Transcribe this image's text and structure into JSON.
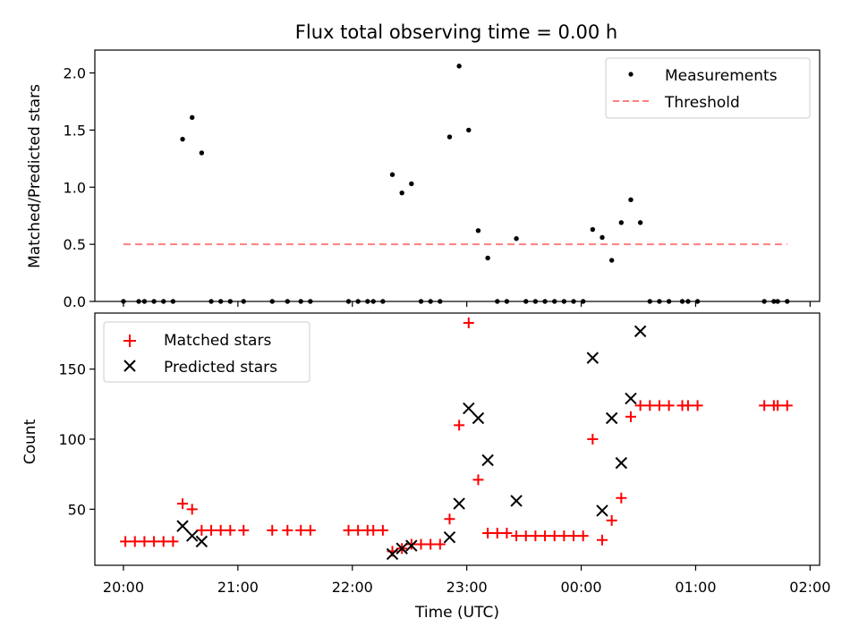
{
  "title": "Flux total observing time = 0.00 h",
  "chart_data": [
    {
      "type": "scatter",
      "ylabel": "Matched/Predicted stars",
      "xlabel": "",
      "xlim": [
        "19:45",
        "02:05"
      ],
      "ylim": [
        0,
        2.2
      ],
      "yticks": [
        "0.0",
        "0.5",
        "1.0",
        "1.5",
        "2.0"
      ],
      "legend": "top-right",
      "grid": false,
      "series": [
        {
          "name": "Measurements",
          "marker": "dot",
          "color": "#000000",
          "points": [
            [
              "20:00",
              0
            ],
            [
              "20:08",
              0
            ],
            [
              "20:11",
              0
            ],
            [
              "20:16",
              0
            ],
            [
              "20:21",
              0
            ],
            [
              "20:26",
              0
            ],
            [
              "20:31",
              1.42
            ],
            [
              "20:36",
              1.61
            ],
            [
              "20:41",
              1.3
            ],
            [
              "20:46",
              0
            ],
            [
              "20:51",
              0
            ],
            [
              "20:56",
              0
            ],
            [
              "21:03",
              0
            ],
            [
              "21:18",
              0
            ],
            [
              "21:26",
              0
            ],
            [
              "21:33",
              0
            ],
            [
              "21:38",
              0
            ],
            [
              "21:58",
              0
            ],
            [
              "22:03",
              0
            ],
            [
              "22:08",
              0
            ],
            [
              "22:11",
              0
            ],
            [
              "22:16",
              0
            ],
            [
              "22:21",
              1.11
            ],
            [
              "22:26",
              0.95
            ],
            [
              "22:31",
              1.03
            ],
            [
              "22:36",
              0
            ],
            [
              "22:41",
              0
            ],
            [
              "22:46",
              0
            ],
            [
              "22:51",
              1.44
            ],
            [
              "22:56",
              2.06
            ],
            [
              "23:01",
              1.5
            ],
            [
              "23:06",
              0.62
            ],
            [
              "23:11",
              0.38
            ],
            [
              "23:16",
              0
            ],
            [
              "23:21",
              0
            ],
            [
              "23:26",
              0.55
            ],
            [
              "23:31",
              0
            ],
            [
              "23:36",
              0
            ],
            [
              "23:41",
              0
            ],
            [
              "23:46",
              0
            ],
            [
              "23:51",
              0
            ],
            [
              "23:56",
              0
            ],
            [
              "00:01",
              0
            ],
            [
              "00:06",
              0.63
            ],
            [
              "00:11",
              0.56
            ],
            [
              "00:16",
              0.36
            ],
            [
              "00:21",
              0.69
            ],
            [
              "00:26",
              0.89
            ],
            [
              "00:31",
              0.69
            ],
            [
              "00:36",
              0
            ],
            [
              "00:41",
              0
            ],
            [
              "00:46",
              0
            ],
            [
              "00:53",
              0
            ],
            [
              "00:56",
              0
            ],
            [
              "01:01",
              0
            ],
            [
              "01:36",
              0
            ],
            [
              "01:41",
              0
            ],
            [
              "01:43",
              0
            ],
            [
              "01:48",
              0
            ]
          ]
        },
        {
          "name": "Threshold",
          "type": "line",
          "style": "dashed",
          "color": "#ff7f7f",
          "points": [
            [
              "20:00",
              0.5
            ],
            [
              "01:48",
              0.5
            ]
          ]
        }
      ]
    },
    {
      "type": "scatter",
      "ylabel": "Count",
      "xlabel": "Time (UTC)",
      "xlim": [
        "19:45",
        "02:05"
      ],
      "ylim": [
        10,
        190
      ],
      "yticks": [
        "50",
        "100",
        "150"
      ],
      "xticks": [
        "20:00",
        "21:00",
        "22:00",
        "23:00",
        "00:00",
        "01:00",
        "02:00"
      ],
      "legend": "top-left",
      "grid": false,
      "series": [
        {
          "name": "Matched stars",
          "marker": "plus",
          "color": "#ff0000",
          "points": [
            [
              "20:01",
              27
            ],
            [
              "20:06",
              27
            ],
            [
              "20:11",
              27
            ],
            [
              "20:16",
              27
            ],
            [
              "20:21",
              27
            ],
            [
              "20:26",
              27
            ],
            [
              "20:31",
              54
            ],
            [
              "20:36",
              50
            ],
            [
              "20:41",
              35
            ],
            [
              "20:46",
              35
            ],
            [
              "20:51",
              35
            ],
            [
              "20:56",
              35
            ],
            [
              "21:03",
              35
            ],
            [
              "21:18",
              35
            ],
            [
              "21:26",
              35
            ],
            [
              "21:33",
              35
            ],
            [
              "21:38",
              35
            ],
            [
              "21:58",
              35
            ],
            [
              "22:03",
              35
            ],
            [
              "22:08",
              35
            ],
            [
              "22:11",
              35
            ],
            [
              "22:16",
              35
            ],
            [
              "22:21",
              20
            ],
            [
              "22:26",
              22
            ],
            [
              "22:31",
              25
            ],
            [
              "22:36",
              25
            ],
            [
              "22:41",
              25
            ],
            [
              "22:46",
              25
            ],
            [
              "22:51",
              43
            ],
            [
              "22:56",
              110
            ],
            [
              "23:01",
              183
            ],
            [
              "23:06",
              71
            ],
            [
              "23:11",
              33
            ],
            [
              "23:16",
              33
            ],
            [
              "23:21",
              33
            ],
            [
              "23:26",
              31
            ],
            [
              "23:31",
              31
            ],
            [
              "23:36",
              31
            ],
            [
              "23:41",
              31
            ],
            [
              "23:46",
              31
            ],
            [
              "23:51",
              31
            ],
            [
              "23:56",
              31
            ],
            [
              "00:01",
              31
            ],
            [
              "00:06",
              100
            ],
            [
              "00:11",
              28
            ],
            [
              "00:16",
              42
            ],
            [
              "00:21",
              58
            ],
            [
              "00:26",
              116
            ],
            [
              "00:31",
              124
            ],
            [
              "00:36",
              124
            ],
            [
              "00:41",
              124
            ],
            [
              "00:46",
              124
            ],
            [
              "00:53",
              124
            ],
            [
              "00:56",
              124
            ],
            [
              "01:01",
              124
            ],
            [
              "01:36",
              124
            ],
            [
              "01:41",
              124
            ],
            [
              "01:43",
              124
            ],
            [
              "01:48",
              124
            ]
          ]
        },
        {
          "name": "Predicted stars",
          "marker": "x",
          "color": "#000000",
          "points": [
            [
              "20:31",
              38
            ],
            [
              "20:36",
              31
            ],
            [
              "20:41",
              27
            ],
            [
              "22:21",
              18
            ],
            [
              "22:26",
              22
            ],
            [
              "22:31",
              24
            ],
            [
              "22:51",
              30
            ],
            [
              "22:56",
              54
            ],
            [
              "23:01",
              122
            ],
            [
              "23:06",
              115
            ],
            [
              "23:11",
              85
            ],
            [
              "23:26",
              56
            ],
            [
              "00:06",
              158
            ],
            [
              "00:11",
              49
            ],
            [
              "00:16",
              115
            ],
            [
              "00:21",
              83
            ],
            [
              "00:26",
              129
            ],
            [
              "00:31",
              177
            ]
          ]
        }
      ]
    }
  ]
}
